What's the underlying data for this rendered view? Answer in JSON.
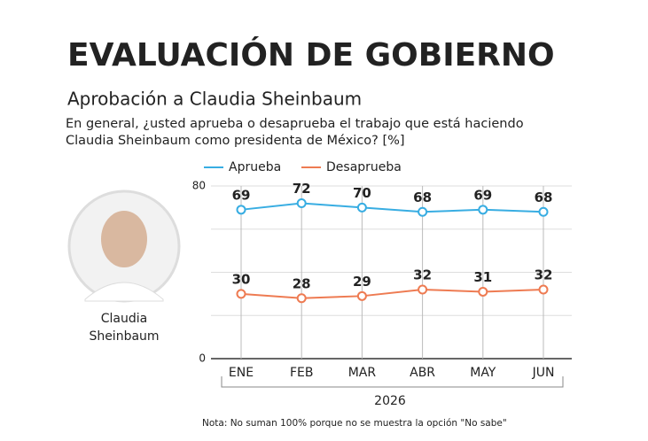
{
  "chart_data": {
    "type": "line",
    "title": "EVALUACIÓN DE GOBIERNO",
    "subtitle": "Aprobación a Claudia Sheinbaum",
    "question": "En general, ¿usted aprueba o desaprueba el trabajo que está haciendo Claudia Sheinbaum como presidenta de México? [%]",
    "portrait_caption": "Claudia Sheinbaum",
    "x_label": "2026",
    "note": "Nota: No suman 100% porque no se muestra la opción \"No sabe\"",
    "categories": [
      "ENE",
      "FEB",
      "MAR",
      "ABR",
      "MAY",
      "JUN"
    ],
    "series": [
      {
        "name": "Aprueba",
        "color": "#38ade2",
        "values": [
          69,
          72,
          70,
          68,
          69,
          68
        ]
      },
      {
        "name": "Desaprueba",
        "color": "#ee7b52",
        "values": [
          30,
          28,
          29,
          32,
          31,
          32
        ]
      }
    ],
    "ylim": [
      0,
      80
    ],
    "yticks": [
      0,
      80
    ],
    "minor_grid": [
      20,
      40,
      60
    ],
    "grid": true
  }
}
